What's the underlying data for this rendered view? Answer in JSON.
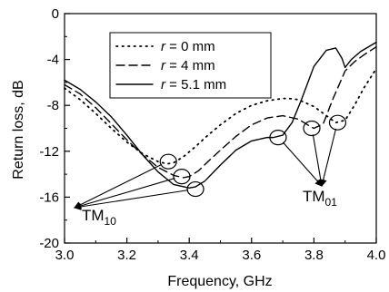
{
  "chart_data": {
    "type": "line",
    "xlabel": "Frequency, GHz",
    "ylabel": "Return loss, dB",
    "xlim": [
      3.0,
      4.0
    ],
    "ylim": [
      -20,
      0
    ],
    "xticks": [
      3.0,
      3.2,
      3.4,
      3.6,
      3.8,
      4.0
    ],
    "xtick_labels": [
      "3.0",
      "3.2",
      "3.4",
      "3.6",
      "3.8",
      "4.0"
    ],
    "yticks": [
      -20,
      -16,
      -12,
      -8,
      -4,
      0
    ],
    "ytick_labels": [
      "-20",
      "-16",
      "-12",
      "-8",
      "-4",
      "0"
    ],
    "grid": false,
    "legend_position": "top-left",
    "legend_var": "r",
    "series": [
      {
        "name": "= 0 mm",
        "style": "dotted",
        "x": [
          3.0,
          3.05,
          3.1,
          3.15,
          3.2,
          3.25,
          3.3,
          3.33,
          3.35,
          3.38,
          3.42,
          3.46,
          3.5,
          3.55,
          3.6,
          3.65,
          3.7,
          3.72,
          3.75,
          3.8,
          3.84,
          3.87,
          3.9,
          3.93,
          3.96,
          4.0
        ],
        "y": [
          -6.5,
          -7.5,
          -8.7,
          -10.0,
          -11.2,
          -12.2,
          -12.9,
          -13.1,
          -13.0,
          -12.5,
          -11.6,
          -10.6,
          -9.7,
          -8.7,
          -8.0,
          -7.6,
          -7.4,
          -7.4,
          -7.5,
          -8.1,
          -8.9,
          -9.5,
          -9.3,
          -8.0,
          -6.5,
          -4.8
        ]
      },
      {
        "name": "= 4 mm",
        "style": "dashed",
        "x": [
          3.0,
          3.05,
          3.1,
          3.15,
          3.2,
          3.25,
          3.3,
          3.35,
          3.38,
          3.4,
          3.43,
          3.46,
          3.5,
          3.55,
          3.6,
          3.65,
          3.7,
          3.75,
          3.78,
          3.8,
          3.83,
          3.86,
          3.9,
          3.93,
          3.96,
          4.0
        ],
        "y": [
          -6.2,
          -7.0,
          -8.2,
          -9.6,
          -11.0,
          -12.3,
          -13.4,
          -14.1,
          -14.3,
          -14.2,
          -13.7,
          -12.9,
          -11.9,
          -10.7,
          -9.7,
          -9.1,
          -8.9,
          -9.2,
          -9.7,
          -10.0,
          -9.6,
          -7.5,
          -5.0,
          -4.2,
          -3.6,
          -2.9
        ]
      },
      {
        "name": "= 5.1 mm",
        "style": "solid",
        "x": [
          3.0,
          3.05,
          3.1,
          3.15,
          3.2,
          3.25,
          3.3,
          3.35,
          3.4,
          3.42,
          3.45,
          3.5,
          3.55,
          3.6,
          3.65,
          3.67,
          3.7,
          3.73,
          3.76,
          3.8,
          3.84,
          3.87,
          3.89,
          3.9,
          3.92,
          3.95,
          4.0
        ],
        "y": [
          -5.8,
          -6.6,
          -7.7,
          -9.0,
          -10.6,
          -12.3,
          -13.8,
          -14.9,
          -15.2,
          -15.1,
          -14.6,
          -13.2,
          -11.9,
          -11.1,
          -10.8,
          -10.8,
          -10.6,
          -9.5,
          -7.5,
          -4.6,
          -3.2,
          -3.0,
          -3.9,
          -4.7,
          -4.0,
          -3.3,
          -2.5
        ]
      }
    ],
    "annotations": [
      {
        "label": "TM",
        "sub": "10"
      },
      {
        "label": "TM",
        "sub": "01"
      }
    ],
    "markers": [
      {
        "group": 0,
        "x": 3.333,
        "y": -12.9
      },
      {
        "group": 0,
        "x": 3.376,
        "y": -14.2
      },
      {
        "group": 0,
        "x": 3.42,
        "y": -15.3
      },
      {
        "group": 1,
        "x": 3.685,
        "y": -10.8
      },
      {
        "group": 1,
        "x": 3.793,
        "y": -10.0
      },
      {
        "group": 1,
        "x": 3.876,
        "y": -9.5
      }
    ]
  }
}
